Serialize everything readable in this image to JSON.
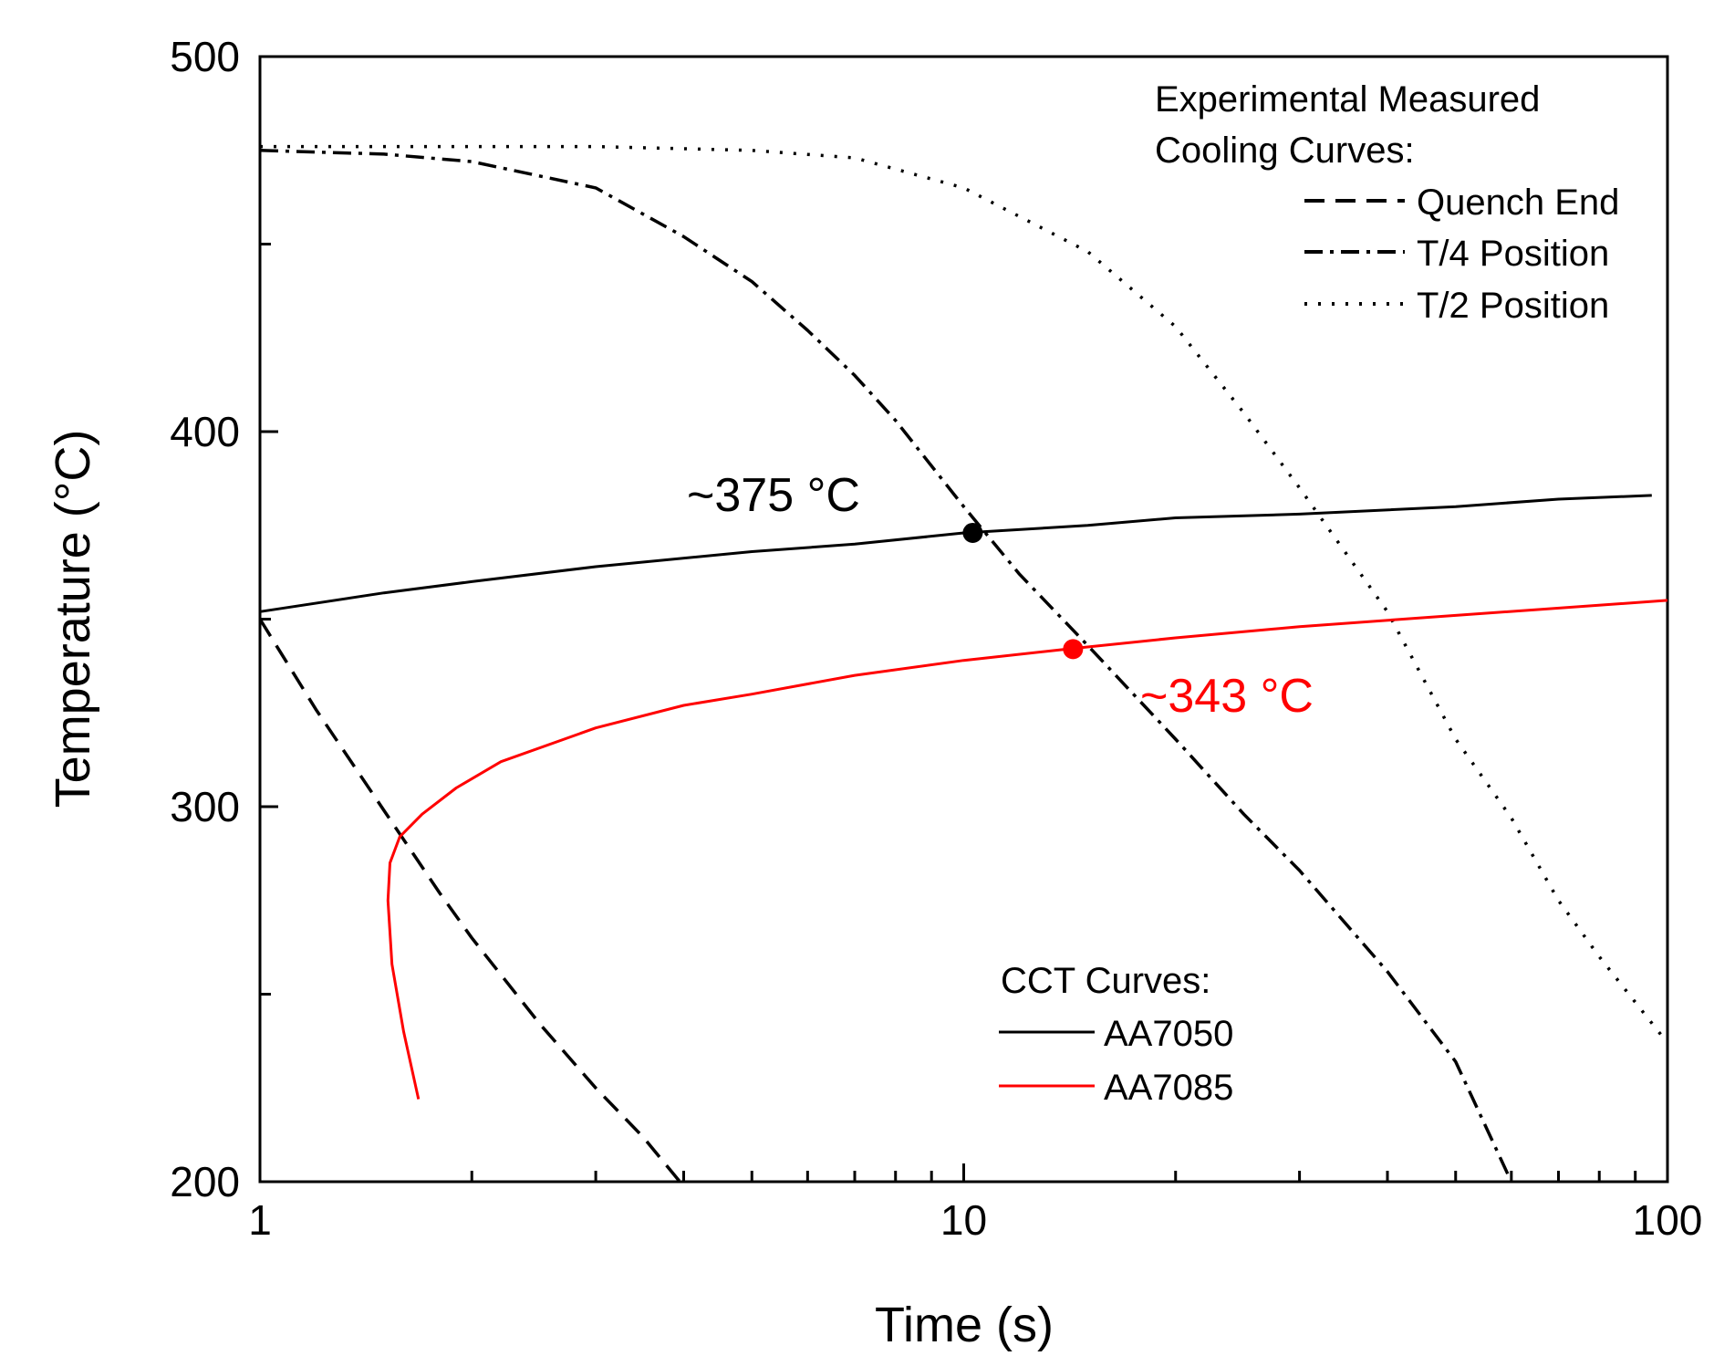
{
  "chart_data": {
    "type": "line",
    "xlabel": "Time (s)",
    "ylabel": "Temperature (°C)",
    "xscale": "log",
    "xlim": [
      1,
      100
    ],
    "ylim": [
      200,
      500
    ],
    "x_ticks": [
      1,
      10,
      100
    ],
    "x_tick_labels": [
      "1",
      "10",
      "100"
    ],
    "y_ticks": [
      200,
      300,
      400,
      500
    ],
    "y_tick_labels": [
      "200",
      "300",
      "400",
      "500"
    ],
    "legend_experimental": {
      "title_line1": "Experimental Measured",
      "title_line2": "Cooling Curves:",
      "placement": "top-right",
      "entries": [
        {
          "label": "Quench End",
          "style": "dashed"
        },
        {
          "label": "T/4 Position",
          "style": "dashdot"
        },
        {
          "label": "T/2 Position",
          "style": "dotted"
        }
      ]
    },
    "legend_cct": {
      "title": "CCT Curves:",
      "placement": "lower-middle",
      "entries": [
        {
          "label": "AA7050",
          "color": "#000000"
        },
        {
          "label": "AA7085",
          "color": "#ff0000"
        }
      ]
    },
    "series": [
      {
        "name": "Quench End",
        "style": "dashed",
        "color": "#000000",
        "x": [
          1.0,
          1.2,
          1.5,
          1.8,
          2.0,
          2.5,
          3.0,
          3.5,
          3.95
        ],
        "y": [
          350,
          326,
          299,
          277,
          265,
          242,
          225,
          212,
          200
        ]
      },
      {
        "name": "T/4 Position",
        "style": "dashdot",
        "color": "#000000",
        "x": [
          1.0,
          1.5,
          2.0,
          3.0,
          4.0,
          5.0,
          6.0,
          7.0,
          8.0,
          10.0,
          12.0,
          15.0,
          20.0,
          25.0,
          30.0,
          40.0,
          50.0,
          60.0
        ],
        "y": [
          475,
          474,
          472,
          465,
          452,
          440,
          427,
          415,
          403,
          380,
          362,
          343,
          318,
          298,
          283,
          256,
          232,
          200
        ]
      },
      {
        "name": "T/2 Position",
        "style": "dotted",
        "color": "#000000",
        "x": [
          1.0,
          2.0,
          3.0,
          5.0,
          7.0,
          10.0,
          15.0,
          20.0,
          25.0,
          30.0,
          40.0,
          50.0,
          60.0,
          70.0,
          80.0,
          100.0
        ],
        "y": [
          476,
          476,
          476,
          475,
          473,
          465,
          448,
          428,
          405,
          385,
          352,
          318,
          297,
          275,
          260,
          237
        ]
      },
      {
        "name": "AA7050",
        "style": "solid",
        "color": "#000000",
        "x": [
          1.0,
          1.5,
          2.0,
          3.0,
          5.0,
          7.0,
          10.0,
          15.0,
          20.0,
          30.0,
          50.0,
          70.0,
          95.0
        ],
        "y": [
          352,
          357,
          360,
          364,
          368,
          370,
          373,
          375,
          377,
          378,
          380,
          382,
          383
        ]
      },
      {
        "name": "AA7085",
        "style": "solid",
        "color": "#ff0000",
        "x": [
          1.68,
          1.6,
          1.54,
          1.52,
          1.53,
          1.58,
          1.7,
          1.9,
          2.2,
          3.0,
          4.0,
          5.0,
          7.0,
          10.0,
          14.0,
          20.0,
          30.0,
          50.0,
          100.0
        ],
        "y": [
          222,
          240,
          258,
          275,
          285,
          292,
          298,
          305,
          312,
          321,
          327,
          330,
          335,
          339,
          342,
          345,
          348,
          351,
          355
        ]
      }
    ],
    "annotations": [
      {
        "text": "~375 °C",
        "color": "#000000",
        "marker_x": 10.3,
        "marker_y": 373
      },
      {
        "text": "~343 °C",
        "color": "#ff0000",
        "marker_x": 14.3,
        "marker_y": 342
      }
    ]
  }
}
